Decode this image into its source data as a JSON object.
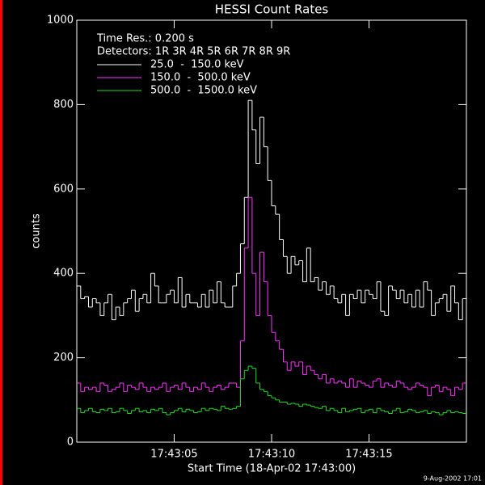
{
  "chart_data": {
    "type": "step",
    "title": "HESSI Count Rates",
    "ylabel": "counts",
    "xlabel": "Start Time (18-Apr-02 17:43:00)",
    "footer": "9-Aug-2002 17:01",
    "info": [
      "Time Res.: 0.200 s",
      "Detectors: 1R 3R 4R 5R 6R 7R 8R 9R"
    ],
    "xlim": [
      0,
      20
    ],
    "ylim": [
      0,
      1000
    ],
    "xticks": [
      {
        "value": 5,
        "label": "17:43:05"
      },
      {
        "value": 10,
        "label": "17:43:10"
      },
      {
        "value": 15,
        "label": "17:43:15"
      }
    ],
    "yticks": [
      0,
      200,
      400,
      600,
      800,
      1000
    ],
    "x": [
      0,
      0.2,
      0.4,
      0.6,
      0.8,
      1,
      1.2,
      1.4,
      1.6,
      1.8,
      2,
      2.2,
      2.4,
      2.6,
      2.8,
      3,
      3.2,
      3.4,
      3.6,
      3.8,
      4,
      4.2,
      4.4,
      4.6,
      4.8,
      5,
      5.2,
      5.4,
      5.6,
      5.8,
      6,
      6.2,
      6.4,
      6.6,
      6.8,
      7,
      7.2,
      7.4,
      7.6,
      7.8,
      8,
      8.2,
      8.4,
      8.6,
      8.8,
      9,
      9.2,
      9.4,
      9.6,
      9.8,
      10,
      10.2,
      10.4,
      10.6,
      10.8,
      11,
      11.2,
      11.4,
      11.6,
      11.8,
      12,
      12.2,
      12.4,
      12.6,
      12.8,
      13,
      13.2,
      13.4,
      13.6,
      13.8,
      14,
      14.2,
      14.4,
      14.6,
      14.8,
      15,
      15.2,
      15.4,
      15.6,
      15.8,
      16,
      16.2,
      16.4,
      16.6,
      16.8,
      17,
      17.2,
      17.4,
      17.6,
      17.8,
      18,
      18.2,
      18.4,
      18.6,
      18.8,
      19,
      19.2,
      19.4,
      19.6,
      19.8
    ],
    "series": [
      {
        "name": "25.0  -  150.0 keV",
        "color": "#ffffff",
        "values": [
          370,
          340,
          345,
          320,
          340,
          330,
          300,
          330,
          350,
          290,
          320,
          300,
          330,
          340,
          360,
          310,
          340,
          350,
          330,
          400,
          370,
          330,
          330,
          350,
          360,
          330,
          390,
          320,
          350,
          330,
          330,
          320,
          350,
          320,
          360,
          330,
          380,
          330,
          320,
          320,
          370,
          400,
          470,
          580,
          810,
          740,
          660,
          770,
          700,
          620,
          560,
          540,
          480,
          440,
          400,
          440,
          420,
          430,
          380,
          460,
          380,
          390,
          360,
          380,
          350,
          370,
          340,
          330,
          350,
          300,
          350,
          340,
          360,
          330,
          360,
          350,
          340,
          380,
          310,
          300,
          370,
          360,
          340,
          360,
          330,
          350,
          320,
          360,
          320,
          380,
          360,
          300,
          330,
          340,
          350,
          310,
          370,
          330,
          290,
          340
        ]
      },
      {
        "name": "150.0  -  500.0 keV",
        "color": "#ff33ff",
        "values": [
          140,
          120,
          130,
          125,
          130,
          120,
          140,
          135,
          120,
          125,
          130,
          140,
          120,
          135,
          130,
          125,
          140,
          130,
          120,
          130,
          125,
          130,
          140,
          120,
          130,
          135,
          125,
          140,
          130,
          120,
          130,
          125,
          140,
          130,
          120,
          130,
          135,
          125,
          130,
          140,
          140,
          130,
          240,
          460,
          580,
          400,
          300,
          450,
          380,
          300,
          260,
          240,
          220,
          190,
          170,
          190,
          180,
          190,
          160,
          180,
          170,
          160,
          150,
          160,
          140,
          150,
          140,
          145,
          140,
          130,
          150,
          130,
          145,
          140,
          135,
          130,
          145,
          150,
          130,
          140,
          135,
          130,
          145,
          140,
          130,
          125,
          130,
          140,
          135,
          130,
          110,
          130,
          135,
          120,
          130,
          125,
          110,
          130,
          125,
          140
        ]
      },
      {
        "name": "500.0  -  1500.0 keV",
        "color": "#22dd22",
        "values": [
          80,
          70,
          75,
          80,
          72,
          70,
          78,
          75,
          80,
          70,
          72,
          80,
          75,
          68,
          75,
          80,
          72,
          75,
          70,
          78,
          75,
          80,
          70,
          65,
          70,
          75,
          80,
          72,
          78,
          75,
          70,
          72,
          80,
          75,
          80,
          78,
          75,
          85,
          80,
          78,
          80,
          85,
          150,
          170,
          180,
          175,
          140,
          125,
          120,
          110,
          105,
          100,
          95,
          95,
          90,
          92,
          90,
          85,
          90,
          88,
          85,
          82,
          80,
          85,
          75,
          80,
          75,
          70,
          80,
          72,
          75,
          78,
          80,
          70,
          75,
          78,
          70,
          80,
          75,
          72,
          68,
          75,
          80,
          70,
          72,
          78,
          75,
          70,
          72,
          75,
          68,
          72,
          70,
          65,
          70,
          75,
          70,
          72,
          70,
          68
        ]
      }
    ]
  }
}
